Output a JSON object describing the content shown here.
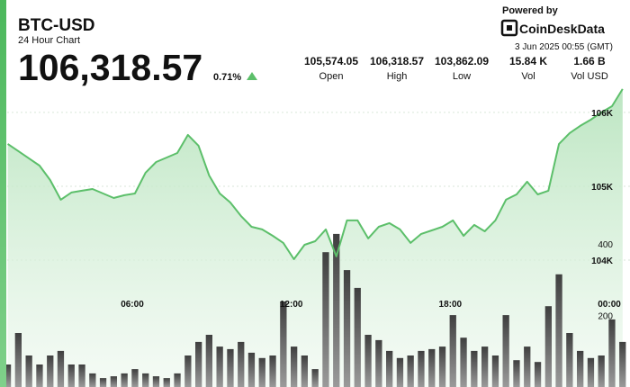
{
  "header": {
    "title": "BTC-USD",
    "subtitle": "24 Hour Chart",
    "price": "106,318.57",
    "change": "0.71%",
    "powered_by": "Powered by",
    "brand": "CoinDeskData",
    "timestamp": "3 Jun 2025 00:55 (GMT)",
    "stats": [
      {
        "value": "105,574.05",
        "label": "Open"
      },
      {
        "value": "106,318.57",
        "label": "High"
      },
      {
        "value": "103,862.09",
        "label": "Low"
      },
      {
        "value": "15.84 K",
        "label": "Vol"
      },
      {
        "value": "1.66 B",
        "label": "Vol USD"
      }
    ]
  },
  "chart_data": {
    "type": "line",
    "x": [
      1.3,
      1.7,
      2.1,
      2.5,
      2.9,
      3.3,
      3.7,
      4.1,
      4.5,
      4.9,
      5.3,
      5.7,
      6.1,
      6.5,
      6.9,
      7.3,
      7.7,
      8.1,
      8.5,
      8.9,
      9.3,
      9.7,
      10.1,
      10.5,
      10.9,
      11.3,
      11.7,
      12.1,
      12.5,
      12.9,
      13.3,
      13.7,
      14.1,
      14.5,
      14.9,
      15.3,
      15.7,
      16.1,
      16.5,
      16.9,
      17.3,
      17.7,
      18.1,
      18.5,
      18.9,
      19.3,
      19.7,
      20.1,
      20.5,
      20.9,
      21.3,
      21.7,
      22.1,
      22.5,
      22.9,
      23.3,
      23.7,
      24.1,
      24.5
    ],
    "xlim": [
      1.28,
      24.78
    ],
    "xticks": [
      {
        "value": 6,
        "label": "06:00"
      },
      {
        "value": 12,
        "label": "12:00"
      },
      {
        "value": 18,
        "label": "18:00"
      },
      {
        "value": 24,
        "label": "00:00"
      }
    ],
    "ylim": [
      102280,
      106365
    ],
    "yticks": [
      {
        "value": 104000,
        "label": "104K"
      },
      {
        "value": 105000,
        "label": "105K"
      },
      {
        "value": 106000,
        "label": "106K"
      }
    ],
    "y2lim": [
      0,
      843
    ],
    "y2ticks": [
      200,
      400
    ],
    "grid": true,
    "series": [
      {
        "color": "#5cbf6a",
        "values": [
          105573,
          105476,
          105378,
          105280,
          105085,
          104817,
          104915,
          104939,
          104963,
          104902,
          104841,
          104878,
          104902,
          105183,
          105329,
          105390,
          105451,
          105695,
          105549,
          105146,
          104902,
          104780,
          104598,
          104451,
          104415,
          104329,
          104232,
          104012,
          104207,
          104256,
          104415,
          104049,
          104537,
          104537,
          104293,
          104451,
          104500,
          104415,
          104232,
          104354,
          104402,
          104451,
          104537,
          104329,
          104476,
          104390,
          104537,
          104817,
          104890,
          105061,
          104890,
          104939,
          105573,
          105720,
          105817,
          105902,
          106000,
          106085,
          106318
        ]
      },
      {
        "type": "bar",
        "axis": "y2",
        "color": "#4a4a4a",
        "values": [
          63,
          151,
          88,
          63,
          88,
          101,
          63,
          63,
          38,
          25,
          30,
          38,
          50,
          38,
          30,
          25,
          38,
          88,
          126,
          146,
          113,
          106,
          126,
          96,
          81,
          88,
          239,
          113,
          88,
          50,
          377,
          428,
          327,
          277,
          146,
          131,
          101,
          81,
          88,
          101,
          106,
          113,
          201,
          138,
          101,
          113,
          88,
          201,
          75,
          113,
          70,
          226,
          315,
          151,
          101,
          81,
          88,
          189,
          126
        ]
      }
    ]
  }
}
